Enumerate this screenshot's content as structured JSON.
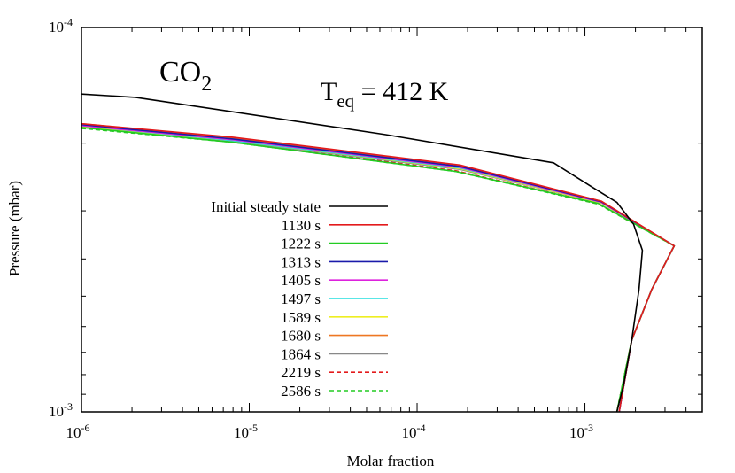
{
  "chart_data": {
    "type": "line",
    "xlabel": "Molar fraction",
    "ylabel": "Pressure (mbar)",
    "xscale": "log",
    "yscale": "log",
    "y_inverted": true,
    "xlim": [
      1e-06,
      0.005
    ],
    "ylim": [
      0.0001,
      0.001
    ],
    "x_ticks": [
      {
        "base": "10",
        "exp": "-6",
        "value": 1e-06
      },
      {
        "base": "10",
        "exp": "-5",
        "value": 1e-05
      },
      {
        "base": "10",
        "exp": "-4",
        "value": 0.0001
      },
      {
        "base": "10",
        "exp": "-3",
        "value": 0.001
      }
    ],
    "y_ticks": [
      {
        "base": "10",
        "exp": "-4",
        "value": 0.0001
      },
      {
        "base": "10",
        "exp": "-3",
        "value": 0.001
      }
    ],
    "annotations": {
      "species_main": "CO",
      "species_sub": "2",
      "teq_main": "T",
      "teq_sub": "eq",
      "teq_value": " = 412 K"
    },
    "legend_placement": "center-left",
    "series": [
      {
        "name": "Initial steady state",
        "color": "#000000",
        "dash": "solid",
        "points": [
          [
            1e-06,
            0.000149
          ],
          [
            2.1e-06,
            0.000152
          ],
          [
            6.5e-05,
            0.00019
          ],
          [
            0.00065,
            0.000225
          ],
          [
            0.0011,
            0.00026
          ],
          [
            0.00155,
            0.000285
          ],
          [
            0.00195,
            0.000325
          ],
          [
            0.0022,
            0.00038
          ],
          [
            0.0021,
            0.00048
          ],
          [
            0.0019,
            0.00065
          ],
          [
            0.0017,
            0.00085
          ],
          [
            0.00155,
            0.001
          ]
        ]
      },
      {
        "name": "1130 s",
        "color": "#e31a1c",
        "dash": "solid",
        "points": [
          [
            1e-06,
            0.000178
          ],
          [
            8e-06,
            0.000193
          ],
          [
            0.00018,
            0.000228
          ],
          [
            0.00125,
            0.000283
          ],
          [
            0.0034,
            0.00037
          ],
          [
            0.0025,
            0.00048
          ],
          [
            0.0019,
            0.00065
          ],
          [
            0.0016,
            0.001
          ]
        ]
      },
      {
        "name": "1222 s",
        "color": "#22cc22",
        "dash": "solid",
        "points": [
          [
            1e-06,
            0.000182
          ],
          [
            8e-06,
            0.000199
          ],
          [
            0.00017,
            0.000237
          ],
          [
            0.0012,
            0.000287
          ],
          [
            0.0034,
            0.00037
          ],
          [
            0.0025,
            0.00048
          ],
          [
            0.0019,
            0.00065
          ],
          [
            0.00155,
            0.001
          ]
        ]
      },
      {
        "name": "1313 s",
        "color": "#1a1aaa",
        "dash": "solid",
        "points": [
          [
            1e-06,
            0.000179
          ],
          [
            8e-06,
            0.000195
          ],
          [
            0.00018,
            0.00023
          ],
          [
            0.00125,
            0.000284
          ],
          [
            0.0034,
            0.00037
          ],
          [
            0.0025,
            0.00048
          ],
          [
            0.0019,
            0.00065
          ],
          [
            0.0016,
            0.001
          ]
        ]
      },
      {
        "name": "1405 s",
        "color": "#dd22dd",
        "dash": "solid",
        "points": [
          [
            1e-06,
            0.00018
          ],
          [
            8e-06,
            0.000196
          ],
          [
            0.00018,
            0.000231
          ],
          [
            0.00125,
            0.000285
          ],
          [
            0.0034,
            0.00037
          ],
          [
            0.0025,
            0.00048
          ],
          [
            0.0019,
            0.00065
          ],
          [
            0.0016,
            0.001
          ]
        ]
      },
      {
        "name": "1497 s",
        "color": "#22dddd",
        "dash": "solid",
        "points": [
          [
            1e-06,
            0.00018
          ],
          [
            8e-06,
            0.000197
          ],
          [
            0.00018,
            0.000232
          ],
          [
            0.00125,
            0.000285
          ],
          [
            0.0034,
            0.00037
          ],
          [
            0.0025,
            0.00048
          ],
          [
            0.0019,
            0.00065
          ],
          [
            0.0016,
            0.001
          ]
        ]
      },
      {
        "name": "1589 s",
        "color": "#eeee22",
        "dash": "solid",
        "points": [
          [
            1e-06,
            0.000181
          ],
          [
            8e-06,
            0.000197
          ],
          [
            0.00018,
            0.000233
          ],
          [
            0.00125,
            0.000286
          ],
          [
            0.0034,
            0.00037
          ],
          [
            0.0025,
            0.00048
          ],
          [
            0.0019,
            0.00065
          ],
          [
            0.0016,
            0.001
          ]
        ]
      },
      {
        "name": "1680 s",
        "color": "#ee7722",
        "dash": "solid",
        "points": [
          [
            1e-06,
            0.000178
          ],
          [
            8e-06,
            0.000194
          ],
          [
            0.00018,
            0.000229
          ],
          [
            0.00125,
            0.000283
          ],
          [
            0.0034,
            0.00037
          ],
          [
            0.0025,
            0.00048
          ],
          [
            0.0019,
            0.00065
          ],
          [
            0.0016,
            0.001
          ]
        ]
      },
      {
        "name": "1864 s",
        "color": "#888888",
        "dash": "solid",
        "points": [
          [
            1e-06,
            0.000181
          ],
          [
            8e-06,
            0.000198
          ],
          [
            0.00018,
            0.000234
          ],
          [
            0.00125,
            0.000286
          ],
          [
            0.0034,
            0.00037
          ],
          [
            0.0025,
            0.00048
          ],
          [
            0.0019,
            0.00065
          ],
          [
            0.0016,
            0.001
          ]
        ]
      },
      {
        "name": "2219 s",
        "color": "#e31a1c",
        "dash": "dashed",
        "points": [
          [
            1e-06,
            0.000182
          ],
          [
            8e-06,
            0.000198
          ],
          [
            0.00017,
            0.000236
          ],
          [
            0.0012,
            0.000287
          ],
          [
            0.0034,
            0.00037
          ],
          [
            0.0025,
            0.00048
          ],
          [
            0.0019,
            0.00065
          ],
          [
            0.00155,
            0.001
          ]
        ]
      },
      {
        "name": "2586 s",
        "color": "#22cc22",
        "dash": "dashed",
        "points": [
          [
            1e-06,
            0.000183
          ],
          [
            8e-06,
            0.000199
          ],
          [
            0.00017,
            0.000237
          ],
          [
            0.0012,
            0.000288
          ],
          [
            0.0034,
            0.00037
          ],
          [
            0.0025,
            0.00048
          ],
          [
            0.0019,
            0.00065
          ],
          [
            0.00155,
            0.001
          ]
        ]
      }
    ]
  }
}
